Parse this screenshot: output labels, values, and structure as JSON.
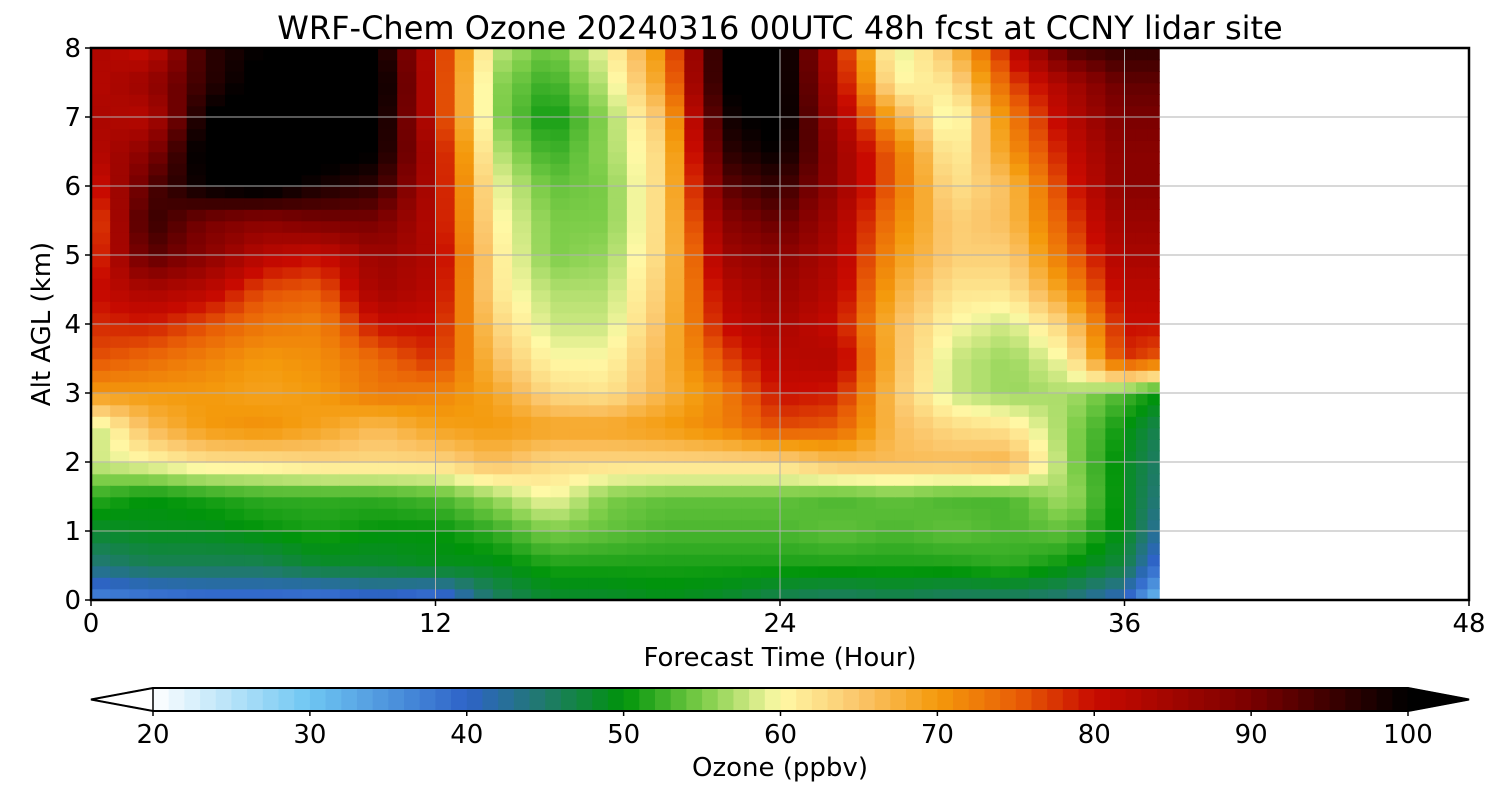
{
  "chart_data": {
    "type": "heatmap",
    "title": "WRF-Chem Ozone  20240316 00UTC 48h fcst at CCNY lidar site",
    "xlabel": "Forecast Time (Hour)",
    "ylabel": "Alt AGL (km)",
    "xlim": [
      0,
      48
    ],
    "ylim": [
      0,
      8
    ],
    "x_ticks": [
      0,
      12,
      24,
      36,
      48
    ],
    "y_ticks": [
      0,
      1,
      2,
      3,
      4,
      5,
      6,
      7,
      8
    ],
    "grid": true,
    "data_x_extent": [
      0,
      37.2
    ],
    "x": [
      0,
      2,
      4,
      6,
      8,
      10,
      12,
      14,
      16,
      18,
      20,
      22,
      24,
      26,
      28,
      30,
      32,
      34,
      36,
      37
    ],
    "y": [
      0,
      0.5,
      1,
      1.5,
      2,
      2.5,
      3,
      3.5,
      4,
      4.5,
      5,
      5.5,
      6,
      6.5,
      7,
      7.5,
      8
    ],
    "z_units": "ppbv",
    "z": [
      [
        36,
        37,
        38,
        38,
        37,
        39,
        37,
        45,
        48,
        48,
        49,
        48,
        46,
        45,
        46,
        45,
        45,
        44,
        40,
        30
      ],
      [
        44,
        46,
        46,
        46,
        48,
        48,
        49,
        49,
        51,
        51,
        51,
        51,
        51,
        51,
        51,
        51,
        52,
        50,
        47,
        38
      ],
      [
        48,
        49,
        49,
        50,
        51,
        50,
        50,
        52,
        55,
        54,
        53,
        53,
        53,
        54,
        53,
        54,
        53,
        54,
        49,
        42
      ],
      [
        52,
        50,
        51,
        52,
        52,
        52,
        53,
        56,
        60,
        55,
        54,
        54,
        54,
        53,
        54,
        53,
        53,
        57,
        49,
        44
      ],
      [
        58,
        60,
        62,
        62,
        63,
        63,
        63,
        66,
        63,
        63,
        63,
        63,
        63,
        66,
        66,
        66,
        67,
        56,
        49,
        45
      ],
      [
        57,
        66,
        70,
        71,
        69,
        66,
        69,
        70,
        69,
        69,
        70,
        72,
        76,
        75,
        66,
        63,
        62,
        56,
        50,
        46
      ],
      [
        70,
        70,
        70,
        69,
        70,
        73,
        72,
        69,
        63,
        62,
        67,
        72,
        80,
        79,
        65,
        58,
        56,
        57,
        53,
        50
      ],
      [
        76,
        74,
        72,
        70,
        71,
        74,
        78,
        66,
        60,
        60,
        67,
        76,
        82,
        83,
        66,
        58,
        56,
        60,
        78,
        75
      ],
      [
        78,
        79,
        76,
        73,
        72,
        80,
        80,
        64,
        58,
        58,
        66,
        80,
        84,
        80,
        66,
        60,
        58,
        64,
        80,
        80
      ],
      [
        80,
        84,
        82,
        76,
        75,
        85,
        82,
        62,
        57,
        57,
        65,
        82,
        86,
        82,
        68,
        62,
        62,
        70,
        82,
        82
      ],
      [
        76,
        93,
        88,
        82,
        80,
        86,
        83,
        62,
        55,
        56,
        64,
        85,
        88,
        83,
        70,
        64,
        64,
        74,
        84,
        84
      ],
      [
        74,
        96,
        90,
        88,
        90,
        90,
        82,
        61,
        55,
        55,
        64,
        88,
        92,
        84,
        72,
        64,
        66,
        76,
        86,
        86
      ],
      [
        78,
        93,
        100,
        102,
        98,
        96,
        82,
        60,
        54,
        55,
        64,
        92,
        96,
        86,
        74,
        62,
        66,
        78,
        88,
        88
      ],
      [
        82,
        88,
        102,
        104,
        102,
        100,
        82,
        58,
        52,
        56,
        64,
        96,
        100,
        86,
        74,
        60,
        70,
        80,
        88,
        88
      ],
      [
        84,
        82,
        100,
        104,
        104,
        101,
        80,
        56,
        50,
        56,
        66,
        98,
        102,
        84,
        68,
        58,
        72,
        82,
        90,
        90
      ],
      [
        82,
        86,
        96,
        102,
        104,
        102,
        80,
        56,
        52,
        58,
        70,
        100,
        102,
        82,
        60,
        62,
        76,
        84,
        92,
        92
      ],
      [
        84,
        80,
        96,
        100,
        102,
        100,
        80,
        58,
        54,
        60,
        72,
        100,
        102,
        80,
        58,
        66,
        80,
        94,
        96,
        96
      ]
    ],
    "colorbar": {
      "label": "Ozone  (ppbv)",
      "min": 20,
      "max": 100,
      "ticks": [
        "20",
        "30",
        "40",
        "50",
        "60",
        "70",
        "80",
        "90",
        "100"
      ],
      "extend": "both",
      "stops": [
        {
          "v": 20,
          "c": "#ffffff"
        },
        {
          "v": 30,
          "c": "#6ec6f2"
        },
        {
          "v": 40,
          "c": "#2e63c8"
        },
        {
          "v": 45,
          "c": "#1f7a6a"
        },
        {
          "v": 50,
          "c": "#00940a"
        },
        {
          "v": 55,
          "c": "#7ccd48"
        },
        {
          "v": 60,
          "c": "#fff9a6"
        },
        {
          "v": 65,
          "c": "#fbc56a"
        },
        {
          "v": 70,
          "c": "#f49a0c"
        },
        {
          "v": 75,
          "c": "#e95f06"
        },
        {
          "v": 80,
          "c": "#c80a00"
        },
        {
          "v": 90,
          "c": "#7a0000"
        },
        {
          "v": 100,
          "c": "#000000"
        }
      ]
    }
  }
}
